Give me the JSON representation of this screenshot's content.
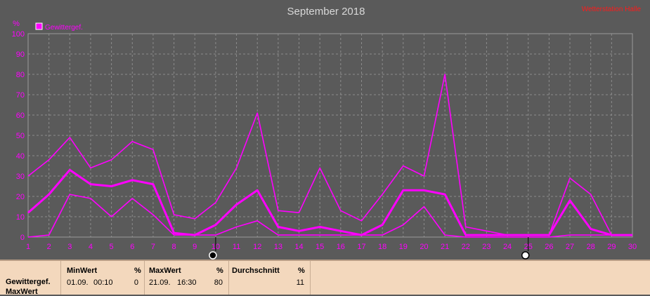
{
  "page": {
    "title": "September 2018",
    "watermark": "Wetterstation Halle",
    "unit": "%"
  },
  "colors": {
    "series": "#ff00ff",
    "axis_text": "#ff00ff",
    "title": "#d8d8d8",
    "grid": "#8c8c8c",
    "watermark": "#ff1a1a"
  },
  "chart_data": {
    "type": "line",
    "title": "September 2018",
    "ylabel": "%",
    "ylim": [
      0,
      100
    ],
    "yticks": [
      0,
      10,
      20,
      30,
      40,
      50,
      60,
      70,
      80,
      90,
      100
    ],
    "x": [
      1,
      2,
      3,
      4,
      5,
      6,
      7,
      8,
      9,
      10,
      11,
      12,
      13,
      14,
      15,
      16,
      17,
      18,
      19,
      20,
      21,
      22,
      23,
      24,
      25,
      26,
      27,
      28,
      29,
      30
    ],
    "grid": true,
    "legend": "top-left",
    "series": [
      {
        "name": "Gewittergef.",
        "role": "max",
        "values": [
          30,
          38,
          49,
          34,
          38,
          47,
          43,
          11,
          9,
          17,
          34,
          61,
          13,
          12,
          34,
          13,
          8,
          21,
          35,
          30,
          80,
          5,
          3,
          1,
          1,
          1,
          29,
          21,
          1,
          1
        ]
      },
      {
        "role": "avg",
        "values": [
          12,
          21,
          33,
          26,
          25,
          28,
          26,
          2,
          1,
          6,
          16,
          23,
          5,
          3,
          5,
          3,
          1,
          6,
          23,
          23,
          21,
          1,
          1,
          1,
          1,
          1,
          18,
          4,
          1,
          1
        ]
      },
      {
        "role": "min",
        "values": [
          0,
          1,
          21,
          19,
          10,
          19,
          11,
          1,
          1,
          1,
          5,
          8,
          1,
          1,
          1,
          1,
          1,
          1,
          6,
          15,
          1,
          0,
          0,
          0,
          0,
          0,
          1,
          1,
          1,
          1
        ]
      }
    ],
    "moon_phases": [
      {
        "day": 10,
        "phase": "new",
        "icon": "new-moon-icon"
      },
      {
        "day": 25,
        "phase": "full",
        "icon": "full-moon-icon"
      }
    ]
  },
  "stats": {
    "label_line1": "Gewittergef.",
    "label_line2": "MaxWert",
    "min": {
      "header": "MinWert",
      "unit": "%",
      "date": "01.09.",
      "time": "00:10",
      "value": "0"
    },
    "max": {
      "header": "MaxWert",
      "unit": "%",
      "date": "21.09.",
      "time": "16:30",
      "value": "80"
    },
    "avg": {
      "header": "Durchschnitt",
      "unit": "%",
      "value": "11"
    }
  }
}
